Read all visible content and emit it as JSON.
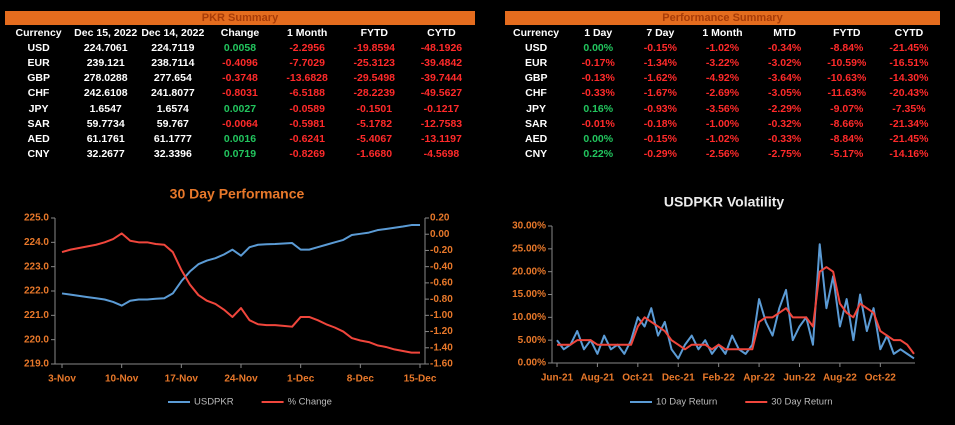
{
  "pkr_summary": {
    "title": "PKR Summary",
    "columns": [
      "Currency",
      "Dec 15, 2022",
      "Dec 14, 2022",
      "Change",
      "1 Month",
      "FYTD",
      "CYTD"
    ],
    "rows": [
      [
        "USD",
        "224.7061",
        "224.7119",
        "0.0058",
        "-2.2956",
        "-19.8594",
        "-48.1926"
      ],
      [
        "EUR",
        "239.121",
        "238.7114",
        "-0.4096",
        "-7.7029",
        "-25.3123",
        "-39.4842"
      ],
      [
        "GBP",
        "278.0288",
        "277.654",
        "-0.3748",
        "-13.6828",
        "-29.5498",
        "-39.7444"
      ],
      [
        "CHF",
        "242.6108",
        "241.8077",
        "-0.8031",
        "-6.5188",
        "-28.2239",
        "-49.5627"
      ],
      [
        "JPY",
        "1.6547",
        "1.6574",
        "0.0027",
        "-0.0589",
        "-0.1501",
        "-0.1217"
      ],
      [
        "SAR",
        "59.7734",
        "59.767",
        "-0.0064",
        "-0.5981",
        "-5.1782",
        "-12.7583"
      ],
      [
        "AED",
        "61.1761",
        "61.1777",
        "0.0016",
        "-0.6241",
        "-5.4067",
        "-13.1197"
      ],
      [
        "CNY",
        "32.2677",
        "32.3396",
        "0.0719",
        "-0.8269",
        "-1.6680",
        "-4.5698"
      ]
    ]
  },
  "performance_summary": {
    "title": "Performance Summary",
    "columns": [
      "Currency",
      "1 Day",
      "7 Day",
      "1 Month",
      "MTD",
      "FYTD",
      "CYTD"
    ],
    "rows": [
      [
        "USD",
        "0.00%",
        "-0.15%",
        "-1.02%",
        "-0.34%",
        "-8.84%",
        "-21.45%"
      ],
      [
        "EUR",
        "-0.17%",
        "-1.34%",
        "-3.22%",
        "-3.02%",
        "-10.59%",
        "-16.51%"
      ],
      [
        "GBP",
        "-0.13%",
        "-1.62%",
        "-4.92%",
        "-3.64%",
        "-10.63%",
        "-14.30%"
      ],
      [
        "CHF",
        "-0.33%",
        "-1.67%",
        "-2.69%",
        "-3.05%",
        "-11.63%",
        "-20.43%"
      ],
      [
        "JPY",
        "0.16%",
        "-0.93%",
        "-3.56%",
        "-2.29%",
        "-9.07%",
        "-7.35%"
      ],
      [
        "SAR",
        "-0.01%",
        "-0.18%",
        "-1.00%",
        "-0.32%",
        "-8.66%",
        "-21.34%"
      ],
      [
        "AED",
        "0.00%",
        "-0.15%",
        "-1.02%",
        "-0.33%",
        "-8.84%",
        "-21.45%"
      ],
      [
        "CNY",
        "0.22%",
        "-0.29%",
        "-2.56%",
        "-2.75%",
        "-5.17%",
        "-14.16%"
      ]
    ]
  },
  "chart_data": [
    {
      "type": "line",
      "title": "30 Day Performance",
      "categories": [
        "3-Nov",
        null,
        null,
        null,
        null,
        null,
        null,
        "10-Nov",
        null,
        null,
        null,
        null,
        null,
        null,
        "17-Nov",
        null,
        null,
        null,
        null,
        null,
        null,
        "24-Nov",
        null,
        null,
        null,
        null,
        null,
        null,
        "1-Dec",
        null,
        null,
        null,
        null,
        null,
        null,
        "8-Dec",
        null,
        null,
        null,
        null,
        null,
        null,
        "15-Dec"
      ],
      "series": [
        {
          "name": "USDPKR",
          "color": "#5b9bd5",
          "values": [
            221.9,
            221.85,
            221.8,
            221.75,
            221.7,
            221.65,
            221.55,
            221.4,
            221.6,
            221.65,
            221.65,
            221.68,
            221.7,
            221.9,
            222.4,
            222.8,
            223.1,
            223.25,
            223.35,
            223.5,
            223.7,
            223.45,
            223.8,
            223.9,
            223.92,
            223.93,
            223.95,
            223.97,
            223.7,
            223.7,
            223.8,
            223.9,
            224.0,
            224.1,
            224.3,
            224.35,
            224.4,
            224.5,
            224.55,
            224.6,
            224.65,
            224.71,
            224.71
          ]
        },
        {
          "name": "% Change",
          "color": "#f0463c",
          "axis": "y2",
          "values": [
            -0.22,
            -0.19,
            -0.17,
            -0.15,
            -0.13,
            -0.1,
            -0.06,
            0.01,
            -0.08,
            -0.1,
            -0.1,
            -0.12,
            -0.13,
            -0.22,
            -0.44,
            -0.62,
            -0.75,
            -0.82,
            -0.86,
            -0.93,
            -1.02,
            -0.91,
            -1.06,
            -1.11,
            -1.12,
            -1.12,
            -1.13,
            -1.14,
            -1.02,
            -1.02,
            -1.06,
            -1.11,
            -1.15,
            -1.2,
            -1.28,
            -1.31,
            -1.33,
            -1.37,
            -1.39,
            -1.42,
            -1.44,
            -1.46,
            -1.46
          ]
        }
      ],
      "ylim": [
        219,
        225
      ],
      "yticks": [
        {
          "value": 219,
          "label": "219.0"
        },
        {
          "value": 220,
          "label": "220.0"
        },
        {
          "value": 221,
          "label": "221.0"
        },
        {
          "value": 222,
          "label": "222.0"
        },
        {
          "value": 223,
          "label": "223.0"
        },
        {
          "value": 224,
          "label": "224.0"
        },
        {
          "value": 225,
          "label": "225.0"
        }
      ],
      "y2lim": [
        -1.6,
        0.2
      ],
      "y2ticks": [
        {
          "value": -1.6,
          "label": "-1.60"
        },
        {
          "value": -1.4,
          "label": "-1.40"
        },
        {
          "value": -1.2,
          "label": "-1.20"
        },
        {
          "value": -1,
          "label": "-1.00"
        },
        {
          "value": -0.8,
          "label": "-0.80"
        },
        {
          "value": -0.6,
          "label": "-0.60"
        },
        {
          "value": -0.4,
          "label": "-0.40"
        },
        {
          "value": -0.2,
          "label": "-0.20"
        },
        {
          "value": 0,
          "label": "0.00"
        },
        {
          "value": 0.2,
          "label": "0.20"
        }
      ],
      "grid": false,
      "legend": "bottom"
    },
    {
      "type": "line",
      "title": "USDPKR Volatility",
      "categories": [
        "Jun-21",
        null,
        null,
        null,
        null,
        null,
        "Aug-21",
        null,
        null,
        null,
        null,
        null,
        "Oct-21",
        null,
        null,
        null,
        null,
        null,
        "Dec-21",
        null,
        null,
        null,
        null,
        null,
        "Feb-22",
        null,
        null,
        null,
        null,
        null,
        "Apr-22",
        null,
        null,
        null,
        null,
        null,
        "Jun-22",
        null,
        null,
        null,
        null,
        null,
        "Aug-22",
        null,
        null,
        null,
        null,
        null,
        "Oct-22",
        null,
        null,
        null,
        null,
        null
      ],
      "series": [
        {
          "name": "10 Day Return",
          "color": "#5b9bd5",
          "values": [
            5,
            3,
            4,
            7,
            3,
            5,
            2,
            6,
            3,
            4,
            2,
            5,
            10,
            8,
            12,
            6,
            9,
            3,
            1,
            4,
            6,
            3,
            5,
            2,
            4,
            2,
            6,
            3,
            2,
            4,
            14,
            9,
            6,
            12,
            16,
            5,
            8,
            10,
            4,
            26,
            12,
            19,
            8,
            14,
            5,
            15,
            7,
            12,
            3,
            6,
            2,
            3,
            2,
            1
          ]
        },
        {
          "name": "30 Day Return",
          "color": "#f0463c",
          "values": [
            4,
            4,
            4,
            5,
            5,
            5,
            4,
            4,
            4,
            4,
            4,
            4,
            8,
            10,
            9,
            8,
            7,
            5,
            4,
            3,
            4,
            4,
            4,
            3,
            4,
            3,
            3,
            3,
            3,
            3,
            9,
            10,
            10,
            11,
            12,
            10,
            10,
            10,
            8,
            20,
            21,
            20,
            13,
            11,
            10,
            13,
            12,
            11,
            7,
            6,
            5,
            5,
            4,
            2
          ]
        }
      ],
      "ylim": [
        0,
        30
      ],
      "yticks": [
        {
          "value": 0,
          "label": "0.00%"
        },
        {
          "value": 5,
          "label": "5.00%"
        },
        {
          "value": 10,
          "label": "10.00%"
        },
        {
          "value": 15,
          "label": "15.00%"
        },
        {
          "value": 20,
          "label": "20.00%"
        },
        {
          "value": 25,
          "label": "25.00%"
        },
        {
          "value": 30,
          "label": "30.00%"
        }
      ],
      "grid": false,
      "legend": "bottom"
    }
  ]
}
